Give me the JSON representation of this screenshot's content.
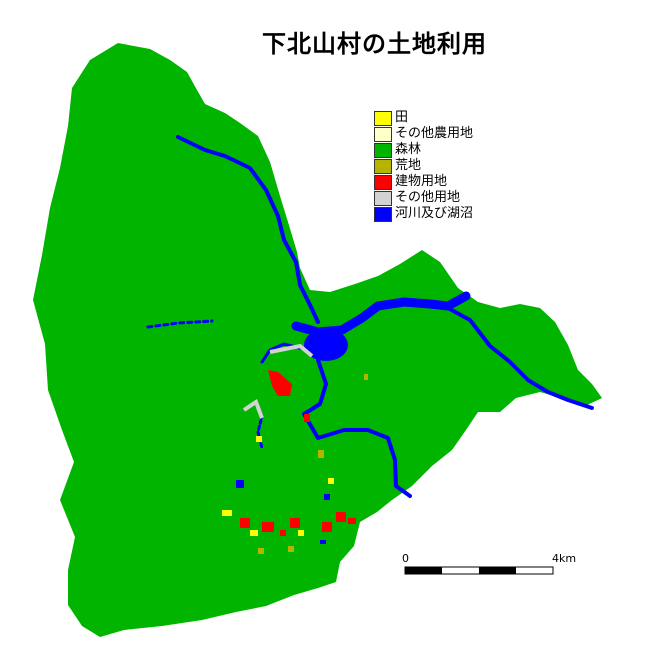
{
  "title": "下北山村の土地利用",
  "legend": [
    {
      "label": "田",
      "color": "#ffff00"
    },
    {
      "label": "その他農用地",
      "color": "#ffffc8"
    },
    {
      "label": "森林",
      "color": "#00b400"
    },
    {
      "label": "荒地",
      "color": "#b4b400"
    },
    {
      "label": "建物用地",
      "color": "#ff0000"
    },
    {
      "label": "その他用地",
      "color": "#d2d2d2"
    },
    {
      "label": "河川及び湖沼",
      "color": "#0000ff"
    }
  ],
  "scale_bar": {
    "start_label": "0",
    "end_label": "4km"
  }
}
